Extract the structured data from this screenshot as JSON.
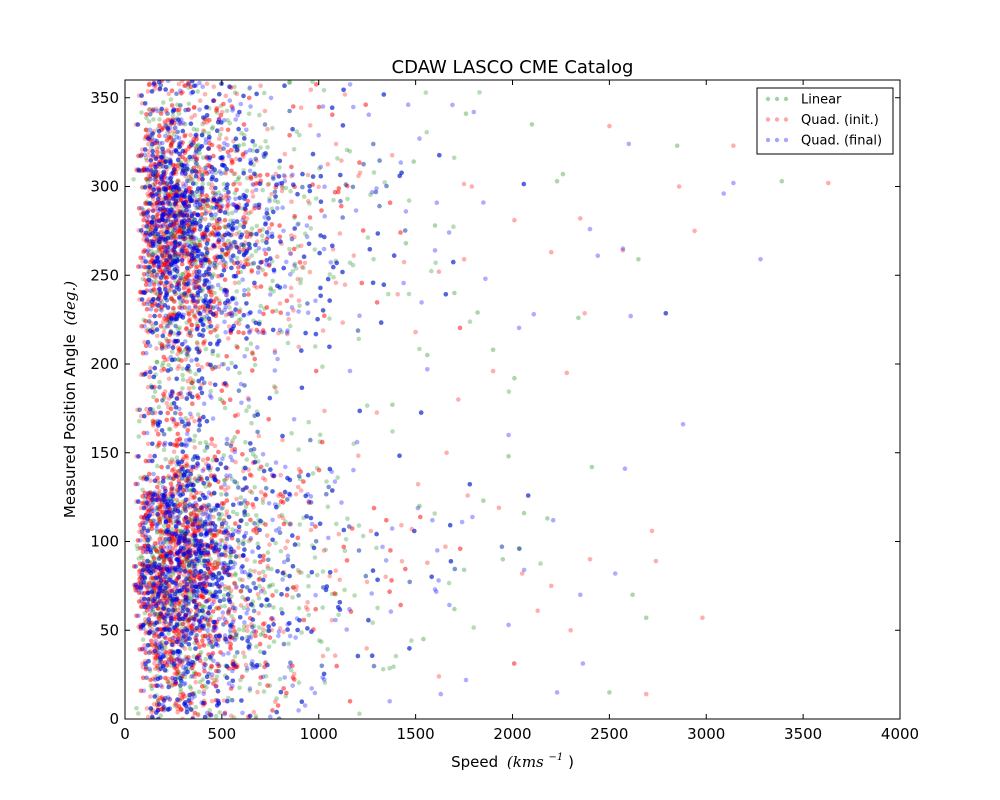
{
  "chart_data": {
    "type": "scatter",
    "title": "CDAW LASCO CME Catalog",
    "xlabel_text": "Speed",
    "xlabel_math": "(kms",
    "xlabel_exp": "−1",
    "xlabel_close": ")",
    "ylabel_text": "Measured Position Angle",
    "ylabel_math": "(deg.)",
    "xlim": [
      0,
      4000
    ],
    "ylim": [
      0,
      360
    ],
    "xticks": [
      0,
      500,
      1000,
      1500,
      2000,
      2500,
      3000,
      3500,
      4000
    ],
    "yticks": [
      0,
      50,
      100,
      150,
      200,
      250,
      300,
      350
    ],
    "grid": false,
    "legend_position": "top-right",
    "series": [
      {
        "name": "Linear",
        "color": "#008000",
        "values": [
          [
            1700,
            240
          ],
          [
            1900,
            208
          ],
          [
            2010,
            192
          ],
          [
            2100,
            335
          ],
          [
            2230,
            303
          ],
          [
            2340,
            226
          ],
          [
            2410,
            142
          ],
          [
            2500,
            15
          ],
          [
            2650,
            259
          ],
          [
            2850,
            323
          ],
          [
            3390,
            303
          ],
          [
            1850,
            123
          ],
          [
            1750,
            84
          ],
          [
            1950,
            90
          ],
          [
            2180,
            113
          ],
          [
            1600,
            278
          ],
          [
            1700,
            62
          ],
          [
            2620,
            70
          ],
          [
            2690,
            57
          ],
          [
            1560,
            205
          ],
          [
            1820,
            229
          ],
          [
            1490,
            314
          ],
          [
            1450,
            268
          ],
          [
            1380,
            177
          ],
          [
            2060,
            116
          ],
          [
            2260,
            307
          ],
          [
            1520,
            120
          ],
          [
            1980,
            148
          ],
          [
            1540,
            45
          ],
          [
            1760,
            341
          ]
        ]
      },
      {
        "name": "Quad. (init.)",
        "color": "#ff0000",
        "values": [
          [
            1500,
            218
          ],
          [
            1620,
            252
          ],
          [
            1750,
            259
          ],
          [
            1900,
            196
          ],
          [
            2200,
            75
          ],
          [
            2500,
            334
          ],
          [
            2720,
            106
          ],
          [
            2940,
            275
          ],
          [
            3140,
            323
          ],
          [
            3630,
            302
          ],
          [
            2690,
            14
          ],
          [
            2980,
            57
          ],
          [
            2740,
            89
          ],
          [
            2300,
            50
          ],
          [
            2050,
            82
          ],
          [
            1790,
            300
          ],
          [
            1660,
            150
          ],
          [
            1560,
            88
          ],
          [
            2400,
            90
          ],
          [
            2570,
            264
          ],
          [
            1930,
            119
          ],
          [
            2860,
            300
          ],
          [
            2280,
            195
          ],
          [
            1720,
            180
          ],
          [
            2130,
            61
          ],
          [
            1480,
            107
          ],
          [
            2010,
            281
          ],
          [
            1620,
            24
          ],
          [
            2350,
            282
          ],
          [
            2200,
            263
          ]
        ]
      },
      {
        "name": "Quad. (final)",
        "color": "#0000ff",
        "values": [
          [
            1800,
            342
          ],
          [
            2880,
            166
          ],
          [
            3090,
            296
          ],
          [
            3140,
            302
          ],
          [
            3280,
            259
          ],
          [
            2610,
            227
          ],
          [
            2600,
            324
          ],
          [
            2570,
            265
          ],
          [
            2580,
            141
          ],
          [
            1450,
            286
          ],
          [
            1600,
            264
          ],
          [
            1850,
            291
          ],
          [
            2060,
            84
          ],
          [
            2530,
            82
          ],
          [
            2230,
            15
          ],
          [
            1630,
            14
          ],
          [
            1980,
            160
          ],
          [
            1740,
            111
          ],
          [
            2400,
            276
          ],
          [
            2110,
            228
          ],
          [
            1520,
            327
          ],
          [
            1760,
            22
          ],
          [
            1980,
            53
          ],
          [
            2210,
            112
          ],
          [
            2350,
            70
          ],
          [
            1560,
            197
          ],
          [
            1690,
            346
          ],
          [
            2440,
            261
          ],
          [
            1860,
            248
          ],
          [
            1600,
            73
          ]
        ]
      }
    ]
  }
}
